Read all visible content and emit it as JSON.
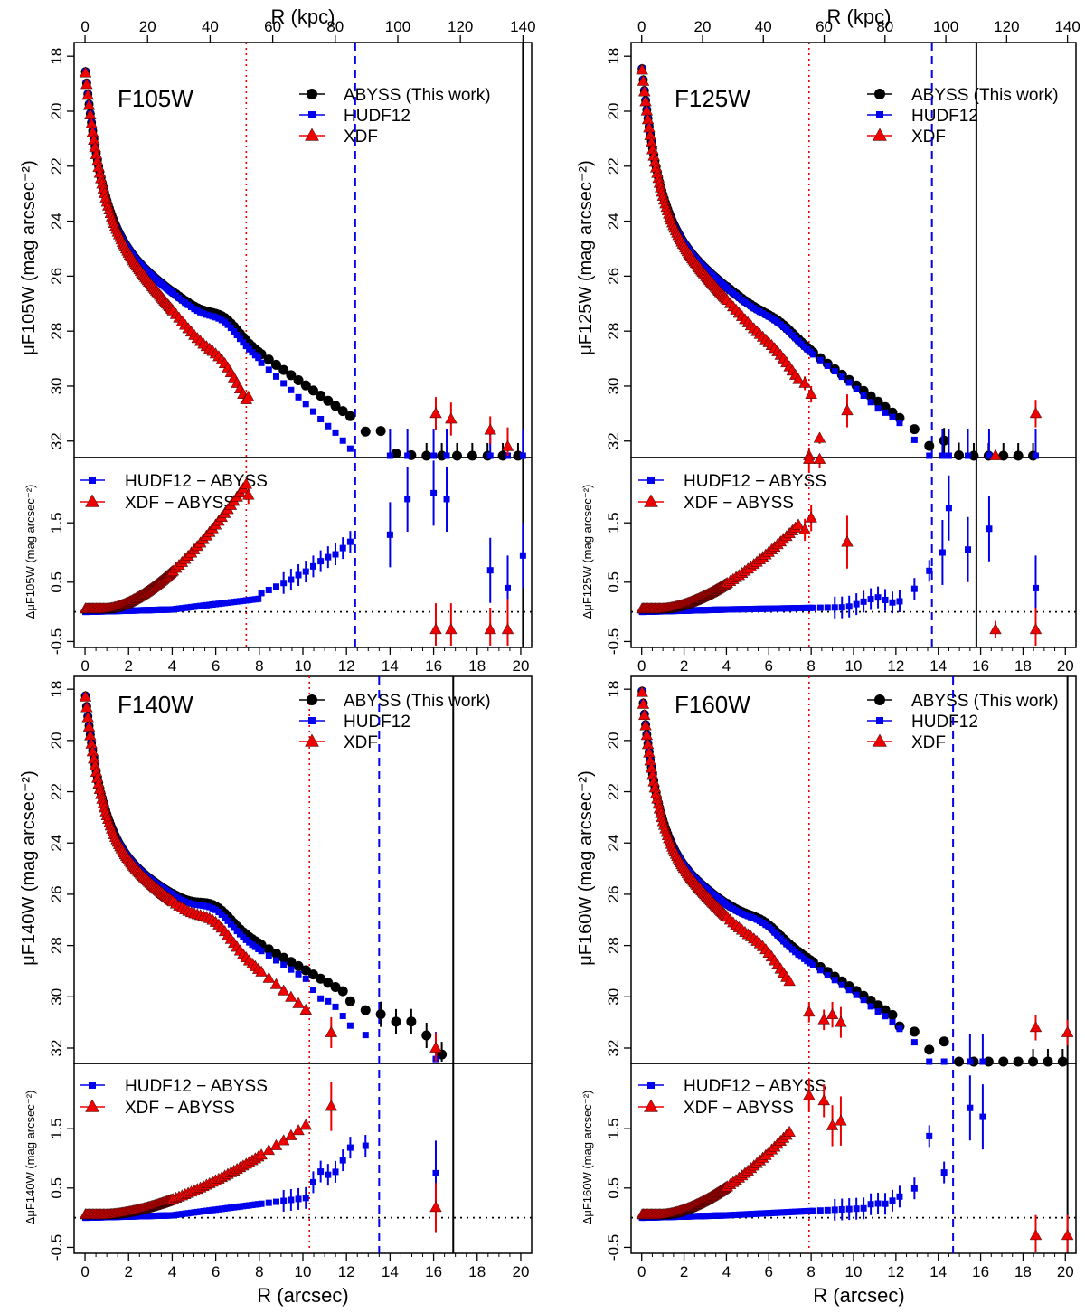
{
  "figure": {
    "top_axis_label": "R (kpc)",
    "bottom_axis_label": "R (arcsec)",
    "colors": {
      "abyss": "#000000",
      "hudf12": "#0000ee",
      "xdf": "#ee0000"
    },
    "legend_top": [
      "ABYSS (This work)",
      "HUDF12",
      "XDF"
    ],
    "legend_bottom": [
      "HUDF12 − ABYSS",
      "XDF − ABYSS"
    ]
  },
  "chart_data": [
    {
      "type": "scatter",
      "title": "F105W",
      "ylabel_top": "μF105W (mag arcsec⁻²)",
      "ylabel_bottom": "ΔμF105W (mag arcsec⁻²)",
      "xlim": [
        -0.5,
        20.5
      ],
      "kpc_max": 140,
      "ylim_top": [
        32.6,
        17.5
      ],
      "ylim_bottom": [
        -0.6,
        2.6
      ],
      "x_ticks": [
        0,
        2,
        4,
        6,
        8,
        10,
        12,
        14,
        16,
        18,
        20
      ],
      "kpc_ticks": [
        0,
        20,
        40,
        60,
        80,
        100,
        120,
        140
      ],
      "y_ticks_top": [
        18,
        20,
        22,
        24,
        26,
        28,
        30,
        32
      ],
      "y_ticks_bottom": [
        -0.5,
        0.5,
        1.5
      ],
      "vlines": {
        "xdf_limit": 7.4,
        "hudf12_limit": 12.4,
        "abyss_limit": 20.1
      },
      "model": {
        "mu0": 18.4,
        "inner_amp": 6.0,
        "inner_scale": 0.8,
        "slope": 0.55,
        "bump_amp": 0.4,
        "bump_center": 6.4,
        "bump_width": 0.9
      },
      "abyss": {
        "x_max": 20.1,
        "scatter_from": 12.5,
        "errors_from": 15.5
      },
      "hudf12": {
        "x_max": 12.4,
        "diff_points": [
          [
            8.0,
            0.3
          ],
          [
            8.3,
            0.35
          ],
          [
            8.6,
            0.39
          ],
          [
            8.9,
            0.45
          ],
          [
            9.2,
            0.5
          ],
          [
            9.5,
            0.55
          ],
          [
            9.8,
            0.62
          ],
          [
            10.2,
            0.69
          ],
          [
            10.6,
            0.8
          ],
          [
            11.0,
            0.9
          ],
          [
            11.5,
            0.97
          ],
          [
            12.4,
            1.25
          ],
          [
            14.0,
            1.3
          ],
          [
            14.8,
            1.9
          ],
          [
            16.0,
            2.0
          ],
          [
            16.6,
            1.9
          ],
          [
            18.6,
            0.7
          ],
          [
            19.4,
            0.4
          ],
          [
            20.1,
            0.95
          ]
        ]
      },
      "xdf": {
        "x_max": 7.4,
        "final_diff": 2.1,
        "outer_points": [
          [
            7.5,
            30.4,
            0.2
          ],
          [
            16.1,
            31.0,
            0.6
          ],
          [
            16.8,
            31.2,
            0.6
          ],
          [
            18.6,
            31.6,
            0.5
          ],
          [
            19.4,
            32.2,
            0.7
          ]
        ]
      }
    },
    {
      "type": "scatter",
      "title": "F125W",
      "ylabel_top": "μF125W (mag arcsec⁻²)",
      "ylabel_bottom": "ΔμF125W (mag arcsec⁻²)",
      "xlim": [
        -0.5,
        20.5
      ],
      "kpc_max": 140,
      "ylim_top": [
        32.6,
        17.5
      ],
      "ylim_bottom": [
        -0.6,
        2.6
      ],
      "x_ticks": [
        0,
        2,
        4,
        6,
        8,
        10,
        12,
        14,
        16,
        18,
        20
      ],
      "kpc_ticks": [
        0,
        20,
        40,
        60,
        80,
        100,
        120,
        140
      ],
      "y_ticks_top": [
        18,
        20,
        22,
        24,
        26,
        28,
        30,
        32
      ],
      "y_ticks_bottom": [
        -0.5,
        0.5,
        1.5
      ],
      "vlines": {
        "xdf_limit": 7.9,
        "hudf12_limit": 13.7,
        "abyss_limit": 15.8
      },
      "model": {
        "mu0": 18.3,
        "inner_amp": 5.8,
        "inner_scale": 0.8,
        "slope": 0.58,
        "bump_amp": 0.2,
        "bump_center": 6.5,
        "bump_width": 1.0
      },
      "abyss": {
        "x_max": 18.6,
        "scatter_from": 13.0,
        "errors_from": 14.0
      },
      "hudf12": {
        "x_max": 13.7,
        "diff_points": [
          [
            9.5,
            0.06
          ],
          [
            9.9,
            0.1
          ],
          [
            10.3,
            0.15
          ],
          [
            10.7,
            0.2
          ],
          [
            11.1,
            0.25
          ],
          [
            11.5,
            0.2
          ],
          [
            11.9,
            0.15
          ],
          [
            12.4,
            0.2
          ],
          [
            12.7,
            0.3
          ],
          [
            13.2,
            0.55
          ],
          [
            13.6,
            0.7
          ],
          [
            14.2,
            1.0
          ],
          [
            14.5,
            1.75
          ],
          [
            15.4,
            1.05
          ],
          [
            16.4,
            1.4
          ],
          [
            18.6,
            0.4
          ]
        ]
      },
      "xdf": {
        "x_max": 7.5,
        "final_diff": 1.45,
        "outer_points": [
          [
            7.7,
            29.9,
            0.25
          ],
          [
            8.0,
            30.3,
            0.3
          ],
          [
            8.4,
            31.9,
            0.2
          ],
          [
            9.7,
            30.9,
            0.6
          ],
          [
            7.9,
            32.7,
            0.3
          ],
          [
            16.7,
            32.7,
            0.2
          ],
          [
            18.6,
            31.0,
            0.5
          ]
        ]
      }
    },
    {
      "type": "scatter",
      "title": "F140W",
      "ylabel_top": "μF140W (mag arcsec⁻²)",
      "ylabel_bottom": "ΔμF140W (mag arcsec⁻²)",
      "xlim": [
        -0.5,
        20.5
      ],
      "kpc_max": 140,
      "ylim_top": [
        32.6,
        17.5
      ],
      "ylim_bottom": [
        -0.6,
        2.6
      ],
      "x_ticks": [
        0,
        2,
        4,
        6,
        8,
        10,
        12,
        14,
        16,
        18,
        20
      ],
      "kpc_ticks": [
        0,
        20,
        40,
        60,
        80,
        100,
        120,
        140
      ],
      "y_ticks_top": [
        18,
        20,
        22,
        24,
        26,
        28,
        30,
        32
      ],
      "y_ticks_bottom": [
        -0.5,
        0.5,
        1.5
      ],
      "vlines": {
        "xdf_limit": 10.3,
        "hudf12_limit": 13.5,
        "abyss_limit": 16.9
      },
      "model": {
        "mu0": 18.1,
        "inner_amp": 6.0,
        "inner_scale": 0.8,
        "slope": 0.48,
        "bump_amp": 0.5,
        "bump_center": 6.0,
        "bump_width": 1.0
      },
      "abyss": {
        "x_max": 16.8,
        "scatter_from": 12.0,
        "errors_from": 13.0
      },
      "hudf12": {
        "x_max": 13.5,
        "diff_points": [
          [
            10.3,
            0.5
          ],
          [
            10.8,
            0.78
          ],
          [
            11.3,
            0.7
          ],
          [
            11.7,
            0.85
          ],
          [
            12.1,
            1.2
          ],
          [
            12.5,
            1.1
          ],
          [
            13.0,
            1.25
          ],
          [
            13.5,
            1.15
          ],
          [
            16.1,
            0.75
          ]
        ]
      },
      "xdf": {
        "x_max": 10.3,
        "final_diff": 1.55,
        "outer_points": [
          [
            11.3,
            31.4,
            0.6
          ],
          [
            16.1,
            32.0,
            0.6
          ]
        ]
      }
    },
    {
      "type": "scatter",
      "title": "F160W",
      "ylabel_top": "μF160W (mag arcsec⁻²)",
      "ylabel_bottom": "ΔμF160W (mag arcsec⁻²)",
      "xlim": [
        -0.5,
        20.5
      ],
      "kpc_max": 140,
      "ylim_top": [
        32.6,
        17.5
      ],
      "ylim_bottom": [
        -0.6,
        2.6
      ],
      "x_ticks": [
        0,
        2,
        4,
        6,
        8,
        10,
        12,
        14,
        16,
        18,
        20
      ],
      "kpc_ticks": [
        0,
        20,
        40,
        60,
        80,
        100,
        120,
        140
      ],
      "y_ticks_top": [
        18,
        20,
        22,
        24,
        26,
        28,
        30,
        32
      ],
      "y_ticks_bottom": [
        -0.5,
        0.5,
        1.5
      ],
      "vlines": {
        "xdf_limit": 7.9,
        "hudf12_limit": 14.7,
        "abyss_limit": 20.1
      },
      "model": {
        "mu0": 17.9,
        "inner_amp": 6.3,
        "inner_scale": 0.75,
        "slope": 0.55,
        "bump_amp": 0.3,
        "bump_center": 5.8,
        "bump_width": 1.0
      },
      "abyss": {
        "x_max": 20.1,
        "scatter_from": 12.0,
        "errors_from": 18.0
      },
      "hudf12": {
        "x_max": 14.7,
        "diff_points": [
          [
            10.6,
            0.2
          ],
          [
            11.0,
            0.25
          ],
          [
            11.4,
            0.22
          ],
          [
            11.8,
            0.28
          ],
          [
            12.3,
            0.38
          ],
          [
            12.7,
            0.45
          ],
          [
            13.1,
            0.55
          ],
          [
            13.5,
            1.45
          ],
          [
            14.1,
            0.85
          ],
          [
            14.6,
            0.6
          ],
          [
            15.5,
            1.85
          ],
          [
            16.1,
            1.7
          ]
        ]
      },
      "xdf": {
        "x_max": 7.0,
        "final_diff": 1.4,
        "outer_points": [
          [
            7.9,
            30.6,
            0.4
          ],
          [
            8.6,
            30.9,
            0.4
          ],
          [
            9.0,
            30.7,
            0.5
          ],
          [
            9.4,
            31.0,
            0.6
          ],
          [
            18.6,
            31.2,
            0.5
          ],
          [
            20.1,
            31.4,
            0.5
          ]
        ]
      }
    }
  ]
}
